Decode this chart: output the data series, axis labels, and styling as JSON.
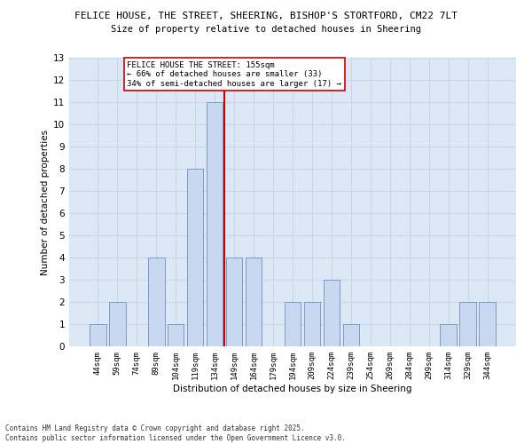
{
  "title1": "FELICE HOUSE, THE STREET, SHEERING, BISHOP'S STORTFORD, CM22 7LT",
  "title2": "Size of property relative to detached houses in Sheering",
  "xlabel": "Distribution of detached houses by size in Sheering",
  "ylabel": "Number of detached properties",
  "categories": [
    "44sqm",
    "59sqm",
    "74sqm",
    "89sqm",
    "104sqm",
    "119sqm",
    "134sqm",
    "149sqm",
    "164sqm",
    "179sqm",
    "194sqm",
    "209sqm",
    "224sqm",
    "239sqm",
    "254sqm",
    "269sqm",
    "284sqm",
    "299sqm",
    "314sqm",
    "329sqm",
    "344sqm"
  ],
  "values": [
    1,
    2,
    0,
    4,
    1,
    8,
    11,
    4,
    4,
    0,
    2,
    2,
    3,
    1,
    0,
    0,
    0,
    0,
    1,
    2,
    2
  ],
  "bar_color": "#c8d8f0",
  "bar_edge_color": "#7090c0",
  "grid_color": "#c5d8ea",
  "bg_color": "#dce8f5",
  "vline_x": 6.5,
  "vline_color": "#cc0000",
  "annotation_text": "FELICE HOUSE THE STREET: 155sqm\n← 66% of detached houses are smaller (33)\n34% of semi-detached houses are larger (17) →",
  "annotation_box_color": "#cc0000",
  "ylim": [
    0,
    13
  ],
  "yticks": [
    0,
    1,
    2,
    3,
    4,
    5,
    6,
    7,
    8,
    9,
    10,
    11,
    12,
    13
  ],
  "footer1": "Contains HM Land Registry data © Crown copyright and database right 2025.",
  "footer2": "Contains public sector information licensed under the Open Government Licence v3.0."
}
